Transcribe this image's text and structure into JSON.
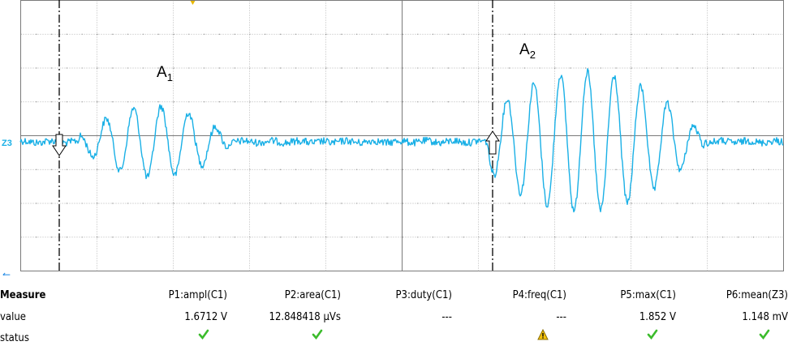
{
  "annotations": {
    "a1": {
      "letter": "A",
      "sub": "1"
    },
    "a2": {
      "letter": "A",
      "sub": "2"
    }
  },
  "channel_marker": "Z3",
  "trace_color": "#1ab0e6",
  "measure": {
    "row_labels": {
      "measure": "Measure",
      "value": "value",
      "status": "status"
    },
    "columns": [
      {
        "param": "P1:ampl(C1)",
        "value": "1.6712 V",
        "status": "ok"
      },
      {
        "param": "P2:area(C1)",
        "value": "12.848418 µVs",
        "status": "ok"
      },
      {
        "param": "P3:duty(C1)",
        "value": "---",
        "status": "none"
      },
      {
        "param": "P4:freq(C1)",
        "value": "---",
        "status": "warning"
      },
      {
        "param": "P5:max(C1)",
        "value": "1.852 V",
        "status": "ok"
      },
      {
        "param": "P6:mean(Z3)",
        "value": "1.148 mV",
        "status": "ok"
      }
    ]
  }
}
